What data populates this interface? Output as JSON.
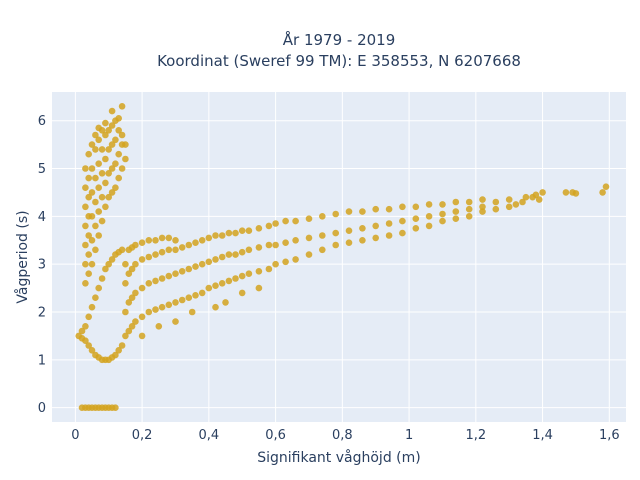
{
  "chart_data": {
    "type": "scatter",
    "title_line1": "År 1979 - 2019",
    "title_line2": "Koordinat (Sweref 99 TM): E 358553, N 6207668",
    "xlabel": "Signifikant våghöjd (m)",
    "ylabel": "Vågperiod (s)",
    "xlim": [
      -0.07,
      1.65
    ],
    "ylim": [
      -0.3,
      6.6
    ],
    "x_ticks": [
      0,
      0.2,
      0.4,
      0.6,
      0.8,
      1,
      1.2,
      1.4,
      1.6
    ],
    "x_tick_labels": [
      "0",
      "0,2",
      "0,4",
      "0,6",
      "0,8",
      "1",
      "1,2",
      "1,4",
      "1,6"
    ],
    "y_ticks": [
      0,
      1,
      2,
      3,
      4,
      5,
      6
    ],
    "y_tick_labels": [
      "0",
      "1",
      "2",
      "3",
      "4",
      "5",
      "6"
    ],
    "grid": true,
    "colors": {
      "marker": "#d4a31e",
      "plot_bg": "#e5ecf6",
      "grid": "#ffffff",
      "text": "#2a3f5f"
    },
    "series": [
      {
        "points": [
          [
            0.02,
            0
          ],
          [
            0.03,
            0
          ],
          [
            0.04,
            0
          ],
          [
            0.05,
            0
          ],
          [
            0.06,
            0
          ],
          [
            0.07,
            0
          ],
          [
            0.08,
            0
          ],
          [
            0.09,
            0
          ],
          [
            0.1,
            0
          ],
          [
            0.11,
            0
          ],
          [
            0.12,
            0
          ],
          [
            0.01,
            1.5
          ],
          [
            0.02,
            1.45
          ],
          [
            0.02,
            1.6
          ],
          [
            0.03,
            1.4
          ],
          [
            0.03,
            1.7
          ],
          [
            0.04,
            1.3
          ],
          [
            0.04,
            1.9
          ],
          [
            0.05,
            1.2
          ],
          [
            0.05,
            2.1
          ],
          [
            0.06,
            1.1
          ],
          [
            0.06,
            2.3
          ],
          [
            0.07,
            1.05
          ],
          [
            0.07,
            2.5
          ],
          [
            0.08,
            1.0
          ],
          [
            0.08,
            2.7
          ],
          [
            0.09,
            1.0
          ],
          [
            0.09,
            2.9
          ],
          [
            0.1,
            1.0
          ],
          [
            0.1,
            3.0
          ],
          [
            0.11,
            1.05
          ],
          [
            0.11,
            3.1
          ],
          [
            0.12,
            1.1
          ],
          [
            0.12,
            3.2
          ],
          [
            0.13,
            1.2
          ],
          [
            0.13,
            3.25
          ],
          [
            0.14,
            1.3
          ],
          [
            0.14,
            3.3
          ],
          [
            0.03,
            2.6
          ],
          [
            0.03,
            3.0
          ],
          [
            0.03,
            3.4
          ],
          [
            0.03,
            3.8
          ],
          [
            0.03,
            4.2
          ],
          [
            0.03,
            4.6
          ],
          [
            0.03,
            5.0
          ],
          [
            0.04,
            2.8
          ],
          [
            0.04,
            3.2
          ],
          [
            0.04,
            3.6
          ],
          [
            0.04,
            4.0
          ],
          [
            0.04,
            4.4
          ],
          [
            0.04,
            4.8
          ],
          [
            0.04,
            5.3
          ],
          [
            0.05,
            3.0
          ],
          [
            0.05,
            3.5
          ],
          [
            0.05,
            4.0
          ],
          [
            0.05,
            4.5
          ],
          [
            0.05,
            5.0
          ],
          [
            0.05,
            5.5
          ],
          [
            0.06,
            3.3
          ],
          [
            0.06,
            3.8
          ],
          [
            0.06,
            4.3
          ],
          [
            0.06,
            4.8
          ],
          [
            0.06,
            5.4
          ],
          [
            0.06,
            5.7
          ],
          [
            0.07,
            3.6
          ],
          [
            0.07,
            4.1
          ],
          [
            0.07,
            4.6
          ],
          [
            0.07,
            5.1
          ],
          [
            0.07,
            5.6
          ],
          [
            0.07,
            5.85
          ],
          [
            0.08,
            3.9
          ],
          [
            0.08,
            4.4
          ],
          [
            0.08,
            4.9
          ],
          [
            0.08,
            5.4
          ],
          [
            0.08,
            5.8
          ],
          [
            0.09,
            4.2
          ],
          [
            0.09,
            4.7
          ],
          [
            0.09,
            5.2
          ],
          [
            0.09,
            5.7
          ],
          [
            0.09,
            5.95
          ],
          [
            0.1,
            4.4
          ],
          [
            0.1,
            4.9
          ],
          [
            0.1,
            5.4
          ],
          [
            0.1,
            5.8
          ],
          [
            0.11,
            4.5
          ],
          [
            0.11,
            5.0
          ],
          [
            0.11,
            5.5
          ],
          [
            0.11,
            5.9
          ],
          [
            0.12,
            4.6
          ],
          [
            0.12,
            5.1
          ],
          [
            0.12,
            5.6
          ],
          [
            0.12,
            6.0
          ],
          [
            0.13,
            4.8
          ],
          [
            0.13,
            5.3
          ],
          [
            0.13,
            5.8
          ],
          [
            0.14,
            5.0
          ],
          [
            0.14,
            5.5
          ],
          [
            0.14,
            5.7
          ],
          [
            0.15,
            5.2
          ],
          [
            0.15,
            5.5
          ],
          [
            0.11,
            6.2
          ],
          [
            0.14,
            6.3
          ],
          [
            0.13,
            6.05
          ],
          [
            0.15,
            1.5
          ],
          [
            0.15,
            2.0
          ],
          [
            0.15,
            2.6
          ],
          [
            0.15,
            3.0
          ],
          [
            0.16,
            1.6
          ],
          [
            0.16,
            2.2
          ],
          [
            0.16,
            2.8
          ],
          [
            0.16,
            3.3
          ],
          [
            0.17,
            1.7
          ],
          [
            0.17,
            2.3
          ],
          [
            0.17,
            2.9
          ],
          [
            0.17,
            3.35
          ],
          [
            0.18,
            1.8
          ],
          [
            0.18,
            2.4
          ],
          [
            0.18,
            3.0
          ],
          [
            0.18,
            3.4
          ],
          [
            0.2,
            1.9
          ],
          [
            0.2,
            2.5
          ],
          [
            0.2,
            3.1
          ],
          [
            0.2,
            3.45
          ],
          [
            0.22,
            2.0
          ],
          [
            0.22,
            2.6
          ],
          [
            0.22,
            3.15
          ],
          [
            0.22,
            3.5
          ],
          [
            0.24,
            2.05
          ],
          [
            0.24,
            2.65
          ],
          [
            0.24,
            3.2
          ],
          [
            0.24,
            3.5
          ],
          [
            0.26,
            2.1
          ],
          [
            0.26,
            2.7
          ],
          [
            0.26,
            3.25
          ],
          [
            0.26,
            3.55
          ],
          [
            0.28,
            2.15
          ],
          [
            0.28,
            2.75
          ],
          [
            0.28,
            3.3
          ],
          [
            0.28,
            3.55
          ],
          [
            0.3,
            2.2
          ],
          [
            0.3,
            2.8
          ],
          [
            0.3,
            3.3
          ],
          [
            0.3,
            3.5
          ],
          [
            0.32,
            2.25
          ],
          [
            0.32,
            2.85
          ],
          [
            0.32,
            3.35
          ],
          [
            0.34,
            2.3
          ],
          [
            0.34,
            2.9
          ],
          [
            0.34,
            3.4
          ],
          [
            0.36,
            2.35
          ],
          [
            0.36,
            2.95
          ],
          [
            0.36,
            3.45
          ],
          [
            0.38,
            2.4
          ],
          [
            0.38,
            3.0
          ],
          [
            0.38,
            3.5
          ],
          [
            0.4,
            2.5
          ],
          [
            0.4,
            3.05
          ],
          [
            0.4,
            3.55
          ],
          [
            0.42,
            2.55
          ],
          [
            0.42,
            3.1
          ],
          [
            0.42,
            3.6
          ],
          [
            0.44,
            2.6
          ],
          [
            0.44,
            3.15
          ],
          [
            0.44,
            3.6
          ],
          [
            0.46,
            2.65
          ],
          [
            0.46,
            3.2
          ],
          [
            0.46,
            3.65
          ],
          [
            0.48,
            2.7
          ],
          [
            0.48,
            3.2
          ],
          [
            0.48,
            3.65
          ],
          [
            0.5,
            2.75
          ],
          [
            0.5,
            3.25
          ],
          [
            0.5,
            3.7
          ],
          [
            0.52,
            2.8
          ],
          [
            0.52,
            3.3
          ],
          [
            0.52,
            3.7
          ],
          [
            0.55,
            2.85
          ],
          [
            0.55,
            3.35
          ],
          [
            0.55,
            3.75
          ],
          [
            0.58,
            2.9
          ],
          [
            0.58,
            3.4
          ],
          [
            0.58,
            3.8
          ],
          [
            0.6,
            3.0
          ],
          [
            0.6,
            3.4
          ],
          [
            0.6,
            3.85
          ],
          [
            0.63,
            3.05
          ],
          [
            0.63,
            3.45
          ],
          [
            0.63,
            3.9
          ],
          [
            0.66,
            3.1
          ],
          [
            0.66,
            3.5
          ],
          [
            0.66,
            3.9
          ],
          [
            0.7,
            3.2
          ],
          [
            0.7,
            3.55
          ],
          [
            0.7,
            3.95
          ],
          [
            0.74,
            3.3
          ],
          [
            0.74,
            3.6
          ],
          [
            0.74,
            4.0
          ],
          [
            0.78,
            3.4
          ],
          [
            0.78,
            3.65
          ],
          [
            0.78,
            4.05
          ],
          [
            0.82,
            3.45
          ],
          [
            0.82,
            3.7
          ],
          [
            0.82,
            4.1
          ],
          [
            0.86,
            3.5
          ],
          [
            0.86,
            3.75
          ],
          [
            0.86,
            4.1
          ],
          [
            0.9,
            3.55
          ],
          [
            0.9,
            3.8
          ],
          [
            0.9,
            4.15
          ],
          [
            0.94,
            3.6
          ],
          [
            0.94,
            3.85
          ],
          [
            0.94,
            4.15
          ],
          [
            0.98,
            3.65
          ],
          [
            0.98,
            3.9
          ],
          [
            0.98,
            4.2
          ],
          [
            1.02,
            3.75
          ],
          [
            1.02,
            3.95
          ],
          [
            1.02,
            4.2
          ],
          [
            1.06,
            3.8
          ],
          [
            1.06,
            4.0
          ],
          [
            1.06,
            4.25
          ],
          [
            1.1,
            3.9
          ],
          [
            1.1,
            4.05
          ],
          [
            1.1,
            4.25
          ],
          [
            1.14,
            3.95
          ],
          [
            1.14,
            4.1
          ],
          [
            1.14,
            4.3
          ],
          [
            1.18,
            4.0
          ],
          [
            1.18,
            4.15
          ],
          [
            1.18,
            4.3
          ],
          [
            1.22,
            4.1
          ],
          [
            1.22,
            4.2
          ],
          [
            1.22,
            4.35
          ],
          [
            1.26,
            4.15
          ],
          [
            1.26,
            4.3
          ],
          [
            1.3,
            4.2
          ],
          [
            1.3,
            4.35
          ],
          [
            1.32,
            4.25
          ],
          [
            1.34,
            4.3
          ],
          [
            1.35,
            4.4
          ],
          [
            1.37,
            4.4
          ],
          [
            1.38,
            4.45
          ],
          [
            1.39,
            4.35
          ],
          [
            1.4,
            4.5
          ],
          [
            1.47,
            4.5
          ],
          [
            1.49,
            4.5
          ],
          [
            1.5,
            4.48
          ],
          [
            1.58,
            4.5
          ],
          [
            1.59,
            4.62
          ],
          [
            0.45,
            2.2
          ],
          [
            0.42,
            2.1
          ],
          [
            0.35,
            2.0
          ],
          [
            0.3,
            1.8
          ],
          [
            0.25,
            1.7
          ],
          [
            0.2,
            1.5
          ],
          [
            0.5,
            2.4
          ],
          [
            0.55,
            2.5
          ]
        ]
      }
    ]
  }
}
